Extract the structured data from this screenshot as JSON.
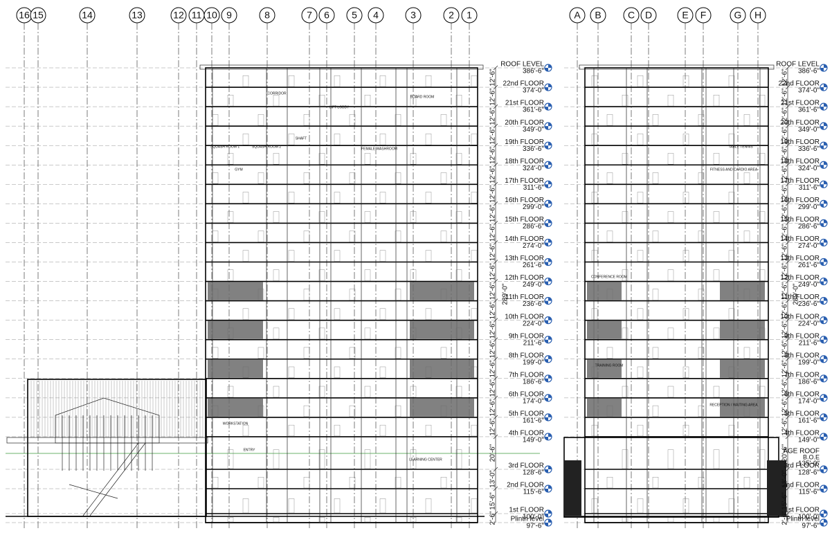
{
  "grid_left": [
    "16",
    "15",
    "14",
    "13",
    "12",
    "11",
    "10",
    "9",
    "8",
    "7",
    "6",
    "5",
    "4",
    "3",
    "2",
    "1"
  ],
  "grid_right": [
    "A",
    "B",
    "C",
    "D",
    "E",
    "F",
    "G",
    "H"
  ],
  "levels": [
    {
      "name": "ROOF LEVEL",
      "elevation": "386'-6\""
    },
    {
      "name": "22nd FLOOR",
      "elevation": "374'-0\""
    },
    {
      "name": "21st FLOOR",
      "elevation": "361'-6\""
    },
    {
      "name": "20th FLOOR",
      "elevation": "349'-0\""
    },
    {
      "name": "19th FLOOR",
      "elevation": "336'-6\""
    },
    {
      "name": "18th FLOOR",
      "elevation": "324'-0\""
    },
    {
      "name": "17th FLOOR",
      "elevation": "311'-6\""
    },
    {
      "name": "16th FLOOR",
      "elevation": "299'-0\""
    },
    {
      "name": "15th FLOOR",
      "elevation": "286'-6\""
    },
    {
      "name": "14th FLOOR",
      "elevation": "274'-0\""
    },
    {
      "name": "13th FLOOR",
      "elevation": "261'-6\""
    },
    {
      "name": "12th FLOOR",
      "elevation": "249'-0\""
    },
    {
      "name": "11th FLOOR",
      "elevation": "236'-6\""
    },
    {
      "name": "10th FLOOR",
      "elevation": "224'-0\""
    },
    {
      "name": "9th FLOOR",
      "elevation": "211'-6\""
    },
    {
      "name": "8th FLOOR",
      "elevation": "199'-0\""
    },
    {
      "name": "7th FLOOR",
      "elevation": "186'-6\""
    },
    {
      "name": "6th FLOOR",
      "elevation": "174'-0\""
    },
    {
      "name": "5th FLOOR",
      "elevation": "161'-6\""
    },
    {
      "name": "4th FLOOR",
      "elevation": "149'-0\""
    },
    {
      "name": "3rd FLOOR",
      "elevation": "128'-6\""
    },
    {
      "name": "2nd FLOOR",
      "elevation": "115'-6\""
    },
    {
      "name": "1st FLOOR",
      "elevation": "100'-0\""
    },
    {
      "name": "Plinth level",
      "elevation": "97'-6\""
    }
  ],
  "dimensions": [
    "12'-6\"",
    "12'-6\"",
    "12'-6\"",
    "12'-6\"",
    "12'-6\"",
    "12'-6\"",
    "12'-6\"",
    "12'-6\"",
    "12'-6\"",
    "12'-6\"",
    "12'-6\"",
    "12'-6\"",
    "12'-6\"",
    "12'-6\"",
    "12'-6\"",
    "12'-6\"",
    "12'-6\"",
    "12'-6\"",
    "12'-6\"",
    "20'-6\"",
    "13'-0\"",
    "15'-6\"",
    "2'-6\""
  ],
  "overall_dimension": "289'-0\"",
  "garage_roof": {
    "name": "AGE ROOF",
    "note": "B.O.E",
    "elevation": "135'-0\""
  },
  "rooms": [
    "BOARD ROOM",
    "CORRIDOR",
    "SHAFT",
    "LIFT LOBBY",
    "FEMALE WASHROOM",
    "SQUASH ROOM 1",
    "SQUASH ROOM 2",
    "GYM",
    "WORKSTATION",
    "ENTRY",
    "LEARNING CENTER",
    "CONFERENCE ROOM",
    "RECEPTION / WAITING AREA",
    "TABLE TENNIS",
    "FITNESS AND CARDIO AREA",
    "TRAINING ROOM"
  ]
}
